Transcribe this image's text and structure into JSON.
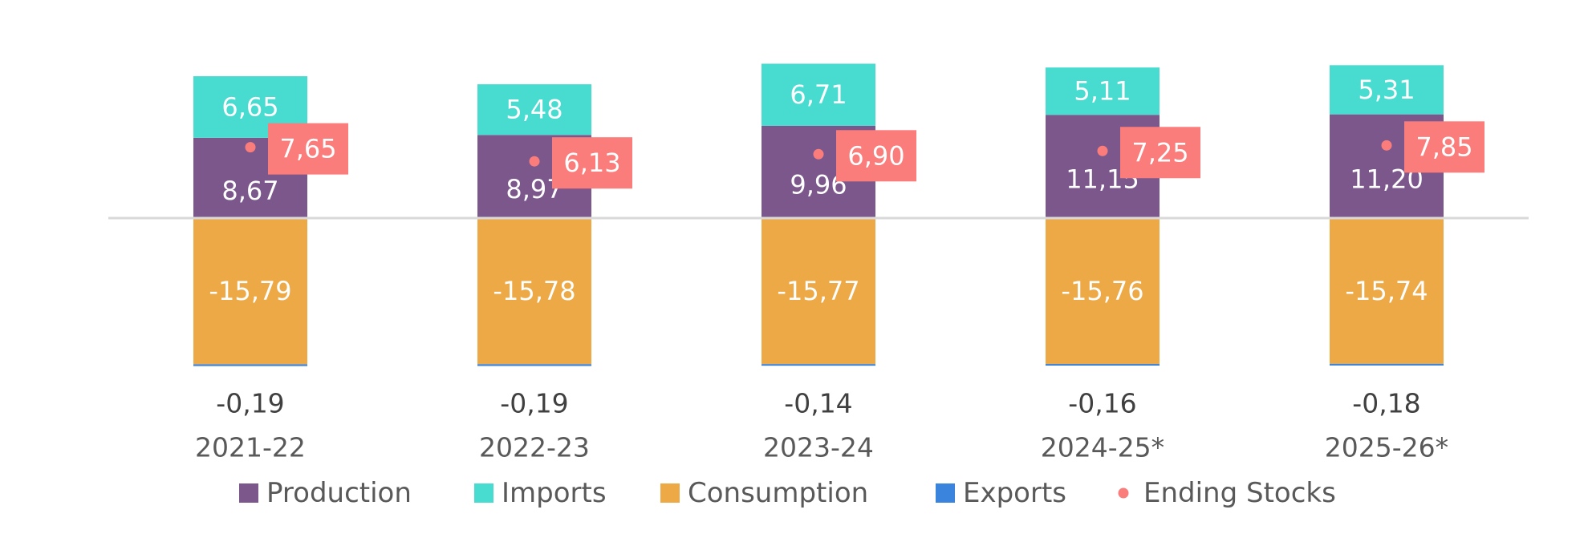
{
  "chart_data": {
    "type": "bar",
    "stacked": true,
    "categories": [
      "2021-22",
      "2022-23",
      "2023-24",
      "2024-25*",
      "2025-26*"
    ],
    "series": [
      {
        "name": "Production",
        "color": "#7b578c",
        "values": [
          8.67,
          8.97,
          9.96,
          11.15,
          11.2
        ],
        "labels": [
          "8,67",
          "8,97",
          "9,96",
          "11,15",
          "11,20"
        ]
      },
      {
        "name": "Imports",
        "color": "#48dcd0",
        "values": [
          6.65,
          5.48,
          6.71,
          5.11,
          5.31
        ],
        "labels": [
          "6,65",
          "5,48",
          "6,71",
          "5,11",
          "5,31"
        ]
      },
      {
        "name": "Consumption",
        "color": "#eda945",
        "values": [
          -15.79,
          -15.78,
          -15.77,
          -15.76,
          -15.74
        ],
        "labels": [
          "-15,79",
          "-15,78",
          "-15,77",
          "-15,76",
          "-15,74"
        ]
      },
      {
        "name": "Exports",
        "color": "#3a84dd",
        "values": [
          -0.19,
          -0.19,
          -0.14,
          -0.16,
          -0.18
        ],
        "labels": [
          "-0,19",
          "-0,19",
          "-0,14",
          "-0,16",
          "-0,18"
        ]
      },
      {
        "name": "Ending Stocks",
        "type": "scatter",
        "color": "#fa7d7b",
        "values": [
          7.65,
          6.13,
          6.9,
          7.25,
          7.85
        ],
        "labels": [
          "7,65",
          "6,13",
          "6,90",
          "7,25",
          "7,85"
        ]
      }
    ],
    "ylim": [
      -16,
      17
    ],
    "zero_line": true,
    "grid": false,
    "legend_position": "bottom"
  }
}
